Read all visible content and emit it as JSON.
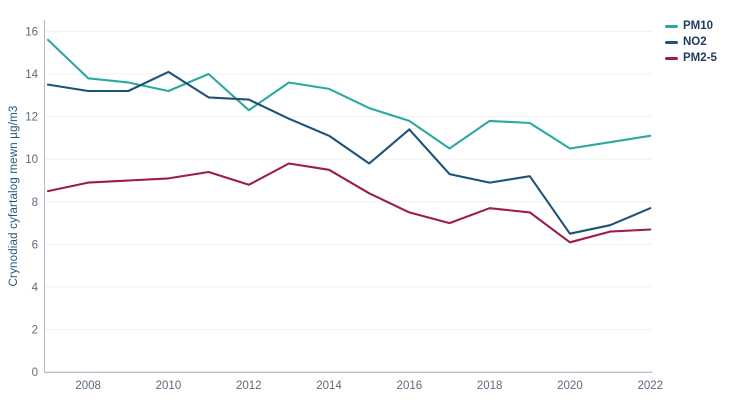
{
  "chart_data": {
    "type": "line",
    "title": "",
    "xlabel": "",
    "ylabel": "Crynodiad cyfartalog mewn µg/m3",
    "x": [
      2007,
      2008,
      2009,
      2010,
      2011,
      2012,
      2013,
      2014,
      2015,
      2016,
      2017,
      2018,
      2019,
      2020,
      2021,
      2022
    ],
    "series": [
      {
        "name": "PM10",
        "color": "#2BA8A0",
        "values": [
          15.6,
          13.8,
          13.6,
          13.2,
          14.0,
          12.3,
          13.6,
          13.3,
          12.4,
          11.8,
          10.5,
          11.8,
          11.7,
          10.5,
          10.8,
          11.1
        ]
      },
      {
        "name": "NO2",
        "color": "#1E5276",
        "values": [
          13.5,
          13.2,
          13.2,
          14.1,
          12.9,
          12.8,
          11.9,
          11.1,
          9.8,
          11.4,
          9.3,
          8.9,
          9.2,
          6.5,
          6.9,
          7.7
        ]
      },
      {
        "name": "PM2-5",
        "color": "#9B1C4D",
        "values": [
          8.5,
          8.9,
          9.0,
          9.1,
          9.4,
          8.8,
          9.8,
          9.5,
          8.4,
          7.5,
          7.0,
          7.7,
          7.5,
          6.1,
          6.6,
          6.7
        ]
      }
    ],
    "ylim": [
      0,
      16
    ],
    "yticks": [
      0,
      2,
      4,
      6,
      8,
      10,
      12,
      14,
      16
    ],
    "xticks": [
      2008,
      2010,
      2012,
      2014,
      2016,
      2018,
      2020,
      2022
    ],
    "grid": "horizontal",
    "legend_position": "top-right"
  }
}
